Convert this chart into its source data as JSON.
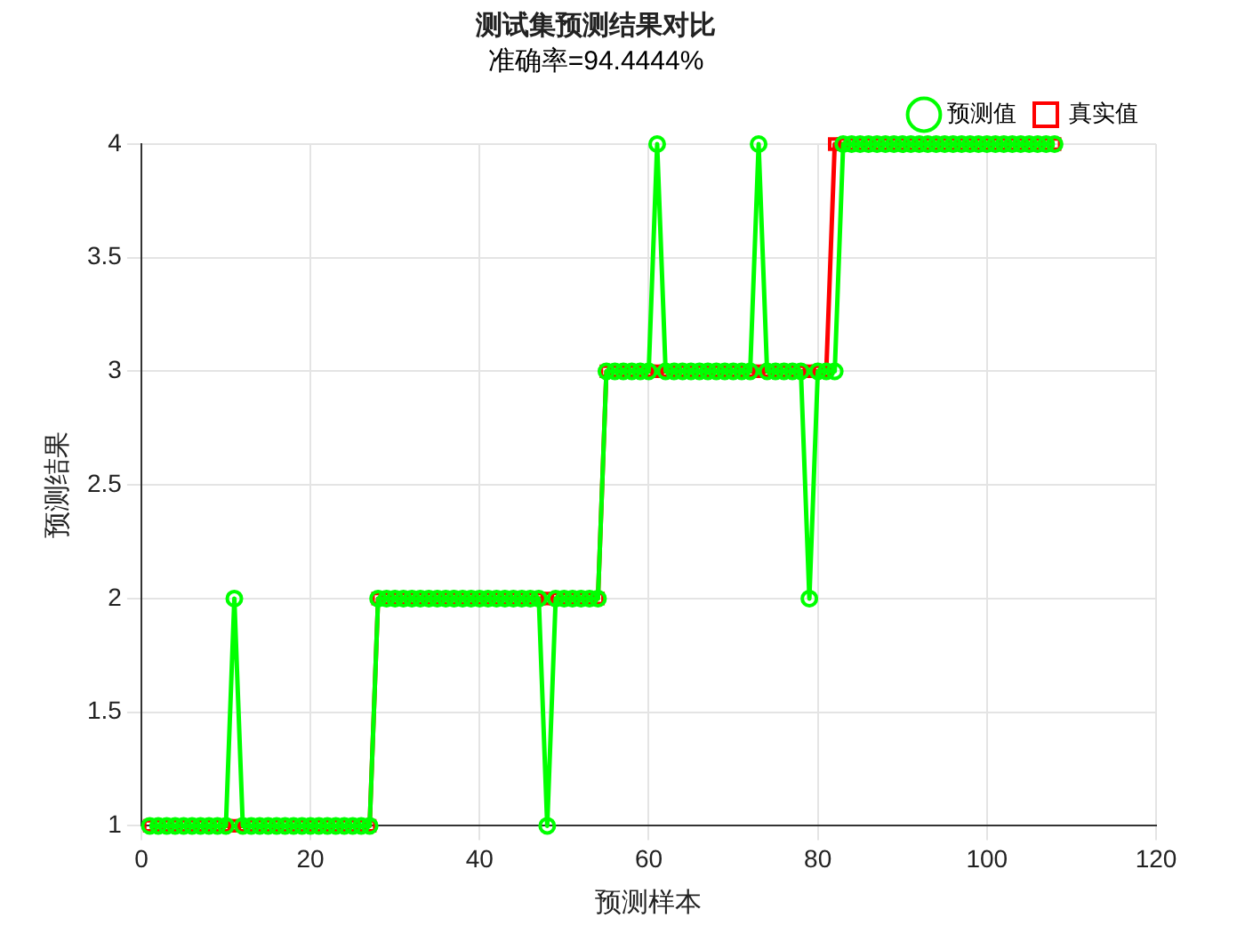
{
  "chart_data": {
    "type": "line",
    "title": "测试集预测结果对比",
    "subtitle": "准确率=94.4444%",
    "xlabel": "预测样本",
    "ylabel": "预测结果",
    "x": [
      1,
      2,
      3,
      4,
      5,
      6,
      7,
      8,
      9,
      10,
      11,
      12,
      13,
      14,
      15,
      16,
      17,
      18,
      19,
      20,
      21,
      22,
      23,
      24,
      25,
      26,
      27,
      28,
      29,
      30,
      31,
      32,
      33,
      34,
      35,
      36,
      37,
      38,
      39,
      40,
      41,
      42,
      43,
      44,
      45,
      46,
      47,
      48,
      49,
      50,
      51,
      52,
      53,
      54,
      55,
      56,
      57,
      58,
      59,
      60,
      61,
      62,
      63,
      64,
      65,
      66,
      67,
      68,
      69,
      70,
      71,
      72,
      73,
      74,
      75,
      76,
      77,
      78,
      79,
      80,
      81,
      82,
      83,
      84,
      85,
      86,
      87,
      88,
      89,
      90,
      91,
      92,
      93,
      94,
      95,
      96,
      97,
      98,
      99,
      100,
      101,
      102,
      103,
      104,
      105,
      106,
      107,
      108
    ],
    "series": [
      {
        "name": "真实值",
        "color": "#ff0000",
        "marker": "square",
        "values": [
          1,
          1,
          1,
          1,
          1,
          1,
          1,
          1,
          1,
          1,
          1,
          1,
          1,
          1,
          1,
          1,
          1,
          1,
          1,
          1,
          1,
          1,
          1,
          1,
          1,
          1,
          1,
          2,
          2,
          2,
          2,
          2,
          2,
          2,
          2,
          2,
          2,
          2,
          2,
          2,
          2,
          2,
          2,
          2,
          2,
          2,
          2,
          2,
          2,
          2,
          2,
          2,
          2,
          2,
          3,
          3,
          3,
          3,
          3,
          3,
          3,
          3,
          3,
          3,
          3,
          3,
          3,
          3,
          3,
          3,
          3,
          3,
          3,
          3,
          3,
          3,
          3,
          3,
          3,
          3,
          3,
          4,
          4,
          4,
          4,
          4,
          4,
          4,
          4,
          4,
          4,
          4,
          4,
          4,
          4,
          4,
          4,
          4,
          4,
          4,
          4,
          4,
          4,
          4,
          4,
          4,
          4,
          4
        ]
      },
      {
        "name": "预测值",
        "color": "#00ff00",
        "marker": "circle",
        "values": [
          1,
          1,
          1,
          1,
          1,
          1,
          1,
          1,
          1,
          1,
          2,
          1,
          1,
          1,
          1,
          1,
          1,
          1,
          1,
          1,
          1,
          1,
          1,
          1,
          1,
          1,
          1,
          2,
          2,
          2,
          2,
          2,
          2,
          2,
          2,
          2,
          2,
          2,
          2,
          2,
          2,
          2,
          2,
          2,
          2,
          2,
          2,
          1,
          2,
          2,
          2,
          2,
          2,
          2,
          3,
          3,
          3,
          3,
          3,
          3,
          4,
          3,
          3,
          3,
          3,
          3,
          3,
          3,
          3,
          3,
          3,
          3,
          4,
          3,
          3,
          3,
          3,
          3,
          2,
          3,
          3,
          3,
          4,
          4,
          4,
          4,
          4,
          4,
          4,
          4,
          4,
          4,
          4,
          4,
          4,
          4,
          4,
          4,
          4,
          4,
          4,
          4,
          4,
          4,
          4,
          4,
          4,
          4
        ]
      }
    ],
    "xlim": [
      0,
      120
    ],
    "xticks": [
      0,
      20,
      40,
      60,
      80,
      100,
      120
    ],
    "ylim": [
      1,
      4
    ],
    "yticks": [
      1,
      1.5,
      2,
      2.5,
      3,
      3.5,
      4
    ],
    "grid": true,
    "legend": "top right",
    "line_style": "solid"
  }
}
